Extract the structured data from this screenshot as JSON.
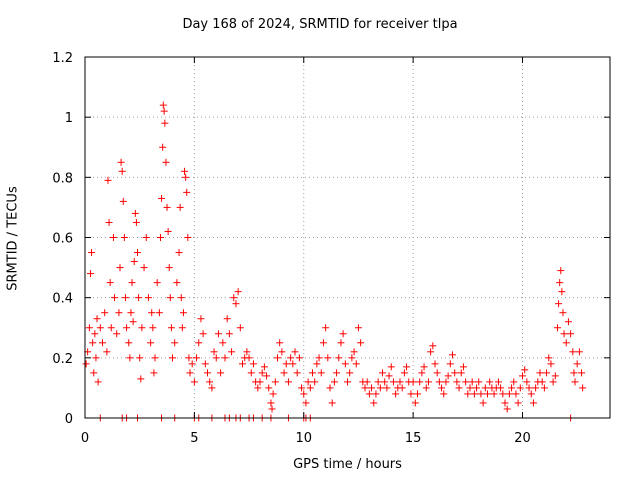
{
  "chart_data": {
    "type": "scatter",
    "title": "Day 168 of 2024, SRMTID for receiver tlpa",
    "xlabel": "GPS time / hours",
    "ylabel": "SRMTID / TECUs",
    "xlim": [
      0,
      24
    ],
    "ylim": [
      0,
      1.2
    ],
    "xticks": [
      0,
      5,
      10,
      15,
      20
    ],
    "xtick_labels": [
      "0",
      "5",
      "10",
      "15",
      "20"
    ],
    "yticks": [
      0,
      0.2,
      0.4,
      0.6,
      0.8,
      1.0,
      1.2
    ],
    "ytick_labels": [
      "0",
      "0.2",
      "0.4",
      "0.6",
      "0.8",
      "1",
      "1.2"
    ],
    "grid": true,
    "marker": "+",
    "series_color": "#ff0000",
    "series": [
      {
        "name": "SRMTID",
        "points": [
          [
            0.05,
            0.18
          ],
          [
            0.12,
            0.22
          ],
          [
            0.2,
            0.3
          ],
          [
            0.25,
            0.48
          ],
          [
            0.3,
            0.55
          ],
          [
            0.35,
            0.25
          ],
          [
            0.4,
            0.15
          ],
          [
            0.45,
            0.28
          ],
          [
            0.5,
            0.2
          ],
          [
            0.55,
            0.33
          ],
          [
            0.6,
            0.12
          ],
          [
            0.7,
            0.3
          ],
          [
            0.8,
            0.25
          ],
          [
            0.9,
            0.35
          ],
          [
            1.0,
            0.22
          ],
          [
            1.05,
            0.79
          ],
          [
            1.1,
            0.65
          ],
          [
            1.15,
            0.45
          ],
          [
            1.2,
            0.3
          ],
          [
            1.3,
            0.6
          ],
          [
            1.35,
            0.4
          ],
          [
            1.45,
            0.28
          ],
          [
            1.55,
            0.35
          ],
          [
            1.6,
            0.5
          ],
          [
            1.65,
            0.85
          ],
          [
            1.7,
            0.82
          ],
          [
            1.75,
            0.72
          ],
          [
            1.8,
            0.6
          ],
          [
            1.85,
            0.4
          ],
          [
            1.9,
            0.3
          ],
          [
            2.0,
            0.25
          ],
          [
            2.05,
            0.2
          ],
          [
            2.1,
            0.35
          ],
          [
            2.15,
            0.45
          ],
          [
            2.2,
            0.32
          ],
          [
            2.25,
            0.52
          ],
          [
            2.3,
            0.68
          ],
          [
            2.35,
            0.65
          ],
          [
            2.4,
            0.55
          ],
          [
            2.45,
            0.4
          ],
          [
            2.5,
            0.2
          ],
          [
            2.55,
            0.13
          ],
          [
            2.6,
            0.3
          ],
          [
            2.7,
            0.5
          ],
          [
            2.8,
            0.6
          ],
          [
            2.9,
            0.4
          ],
          [
            3.0,
            0.25
          ],
          [
            3.05,
            0.35
          ],
          [
            3.1,
            0.3
          ],
          [
            3.15,
            0.15
          ],
          [
            3.2,
            0.2
          ],
          [
            3.3,
            0.45
          ],
          [
            3.4,
            0.35
          ],
          [
            3.45,
            0.6
          ],
          [
            3.5,
            0.73
          ],
          [
            3.55,
            0.9
          ],
          [
            3.58,
            1.04
          ],
          [
            3.62,
            1.02
          ],
          [
            3.65,
            0.98
          ],
          [
            3.7,
            0.85
          ],
          [
            3.75,
            0.7
          ],
          [
            3.8,
            0.62
          ],
          [
            3.85,
            0.5
          ],
          [
            3.9,
            0.4
          ],
          [
            3.95,
            0.3
          ],
          [
            4.0,
            0.2
          ],
          [
            4.1,
            0.25
          ],
          [
            4.2,
            0.45
          ],
          [
            4.3,
            0.55
          ],
          [
            4.35,
            0.7
          ],
          [
            4.4,
            0.4
          ],
          [
            4.45,
            0.3
          ],
          [
            4.5,
            0.35
          ],
          [
            4.55,
            0.82
          ],
          [
            4.6,
            0.8
          ],
          [
            4.65,
            0.75
          ],
          [
            4.7,
            0.6
          ],
          [
            4.75,
            0.2
          ],
          [
            4.8,
            0.15
          ],
          [
            4.9,
            0.18
          ],
          [
            5.0,
            0.12
          ],
          [
            5.1,
            0.2
          ],
          [
            5.2,
            0.25
          ],
          [
            5.3,
            0.33
          ],
          [
            5.4,
            0.28
          ],
          [
            5.5,
            0.18
          ],
          [
            5.6,
            0.15
          ],
          [
            5.7,
            0.12
          ],
          [
            5.8,
            0.1
          ],
          [
            5.9,
            0.22
          ],
          [
            6.0,
            0.2
          ],
          [
            6.1,
            0.28
          ],
          [
            6.2,
            0.15
          ],
          [
            6.3,
            0.25
          ],
          [
            6.4,
            0.2
          ],
          [
            6.5,
            0.33
          ],
          [
            6.6,
            0.28
          ],
          [
            6.7,
            0.22
          ],
          [
            6.8,
            0.4
          ],
          [
            6.9,
            0.38
          ],
          [
            7.0,
            0.42
          ],
          [
            7.1,
            0.3
          ],
          [
            7.2,
            0.18
          ],
          [
            7.3,
            0.2
          ],
          [
            7.4,
            0.22
          ],
          [
            7.5,
            0.2
          ],
          [
            7.6,
            0.15
          ],
          [
            7.7,
            0.18
          ],
          [
            7.8,
            0.12
          ],
          [
            7.9,
            0.1
          ],
          [
            8.0,
            0.12
          ],
          [
            8.1,
            0.15
          ],
          [
            8.2,
            0.17
          ],
          [
            8.3,
            0.14
          ],
          [
            8.4,
            0.1
          ],
          [
            8.5,
            0.05
          ],
          [
            8.55,
            0.03
          ],
          [
            8.6,
            0.08
          ],
          [
            8.7,
            0.12
          ],
          [
            8.8,
            0.2
          ],
          [
            8.9,
            0.25
          ],
          [
            9.0,
            0.22
          ],
          [
            9.1,
            0.15
          ],
          [
            9.2,
            0.18
          ],
          [
            9.3,
            0.12
          ],
          [
            9.4,
            0.2
          ],
          [
            9.5,
            0.18
          ],
          [
            9.6,
            0.22
          ],
          [
            9.7,
            0.15
          ],
          [
            9.8,
            0.2
          ],
          [
            9.9,
            0.1
          ],
          [
            10.0,
            0.08
          ],
          [
            10.1,
            0.05
          ],
          [
            10.2,
            0.12
          ],
          [
            10.3,
            0.1
          ],
          [
            10.4,
            0.15
          ],
          [
            10.5,
            0.12
          ],
          [
            10.6,
            0.18
          ],
          [
            10.7,
            0.2
          ],
          [
            10.8,
            0.15
          ],
          [
            10.9,
            0.25
          ],
          [
            11.0,
            0.3
          ],
          [
            11.1,
            0.2
          ],
          [
            11.2,
            0.1
          ],
          [
            11.3,
            0.05
          ],
          [
            11.4,
            0.12
          ],
          [
            11.5,
            0.15
          ],
          [
            11.6,
            0.2
          ],
          [
            11.7,
            0.25
          ],
          [
            11.8,
            0.28
          ],
          [
            11.9,
            0.18
          ],
          [
            12.0,
            0.12
          ],
          [
            12.1,
            0.15
          ],
          [
            12.2,
            0.2
          ],
          [
            12.3,
            0.22
          ],
          [
            12.4,
            0.18
          ],
          [
            12.5,
            0.3
          ],
          [
            12.6,
            0.25
          ],
          [
            12.7,
            0.12
          ],
          [
            12.8,
            0.1
          ],
          [
            12.9,
            0.12
          ],
          [
            13.0,
            0.08
          ],
          [
            13.1,
            0.1
          ],
          [
            13.2,
            0.05
          ],
          [
            13.3,
            0.08
          ],
          [
            13.4,
            0.12
          ],
          [
            13.5,
            0.1
          ],
          [
            13.6,
            0.15
          ],
          [
            13.7,
            0.12
          ],
          [
            13.8,
            0.1
          ],
          [
            13.9,
            0.14
          ],
          [
            14.0,
            0.17
          ],
          [
            14.1,
            0.12
          ],
          [
            14.2,
            0.08
          ],
          [
            14.3,
            0.1
          ],
          [
            14.4,
            0.12
          ],
          [
            14.5,
            0.1
          ],
          [
            14.6,
            0.15
          ],
          [
            14.7,
            0.17
          ],
          [
            14.8,
            0.12
          ],
          [
            14.9,
            0.08
          ],
          [
            15.0,
            0.12
          ],
          [
            15.1,
            0.05
          ],
          [
            15.2,
            0.08
          ],
          [
            15.3,
            0.12
          ],
          [
            15.4,
            0.15
          ],
          [
            15.5,
            0.17
          ],
          [
            15.6,
            0.1
          ],
          [
            15.7,
            0.12
          ],
          [
            15.8,
            0.22
          ],
          [
            15.9,
            0.24
          ],
          [
            16.0,
            0.18
          ],
          [
            16.1,
            0.15
          ],
          [
            16.2,
            0.12
          ],
          [
            16.3,
            0.1
          ],
          [
            16.4,
            0.08
          ],
          [
            16.5,
            0.12
          ],
          [
            16.6,
            0.14
          ],
          [
            16.7,
            0.18
          ],
          [
            16.8,
            0.21
          ],
          [
            16.9,
            0.15
          ],
          [
            17.0,
            0.12
          ],
          [
            17.1,
            0.1
          ],
          [
            17.2,
            0.15
          ],
          [
            17.3,
            0.17
          ],
          [
            17.4,
            0.12
          ],
          [
            17.5,
            0.08
          ],
          [
            17.6,
            0.1
          ],
          [
            17.7,
            0.12
          ],
          [
            17.8,
            0.08
          ],
          [
            17.9,
            0.1
          ],
          [
            18.0,
            0.12
          ],
          [
            18.1,
            0.08
          ],
          [
            18.2,
            0.05
          ],
          [
            18.3,
            0.1
          ],
          [
            18.4,
            0.08
          ],
          [
            18.5,
            0.12
          ],
          [
            18.6,
            0.1
          ],
          [
            18.7,
            0.08
          ],
          [
            18.8,
            0.1
          ],
          [
            18.9,
            0.12
          ],
          [
            19.0,
            0.1
          ],
          [
            19.1,
            0.08
          ],
          [
            19.2,
            0.05
          ],
          [
            19.3,
            0.03
          ],
          [
            19.4,
            0.08
          ],
          [
            19.5,
            0.1
          ],
          [
            19.6,
            0.12
          ],
          [
            19.7,
            0.08
          ],
          [
            19.8,
            0.05
          ],
          [
            19.9,
            0.1
          ],
          [
            20.0,
            0.14
          ],
          [
            20.1,
            0.16
          ],
          [
            20.2,
            0.12
          ],
          [
            20.3,
            0.1
          ],
          [
            20.4,
            0.08
          ],
          [
            20.5,
            0.05
          ],
          [
            20.6,
            0.1
          ],
          [
            20.7,
            0.12
          ],
          [
            20.8,
            0.15
          ],
          [
            20.9,
            0.12
          ],
          [
            21.0,
            0.1
          ],
          [
            21.1,
            0.15
          ],
          [
            21.2,
            0.2
          ],
          [
            21.3,
            0.18
          ],
          [
            21.4,
            0.12
          ],
          [
            21.5,
            0.14
          ],
          [
            21.6,
            0.3
          ],
          [
            21.65,
            0.38
          ],
          [
            21.7,
            0.45
          ],
          [
            21.75,
            0.49
          ],
          [
            21.8,
            0.42
          ],
          [
            21.85,
            0.35
          ],
          [
            21.9,
            0.28
          ],
          [
            22.0,
            0.25
          ],
          [
            22.1,
            0.32
          ],
          [
            22.2,
            0.28
          ],
          [
            22.3,
            0.22
          ],
          [
            22.35,
            0.15
          ],
          [
            22.4,
            0.12
          ],
          [
            22.5,
            0.18
          ],
          [
            22.6,
            0.22
          ],
          [
            22.7,
            0.15
          ],
          [
            22.75,
            0.1
          ]
        ]
      }
    ],
    "zero_points_x": [
      0.7,
      1.7,
      1.9,
      2.4,
      3.5,
      4.1,
      5.0,
      5.2,
      5.8,
      6.4,
      6.6,
      6.9,
      7.1,
      7.5,
      7.7,
      8.1,
      8.5,
      9.3,
      10.0,
      10.1,
      10.3,
      22.2
    ]
  }
}
